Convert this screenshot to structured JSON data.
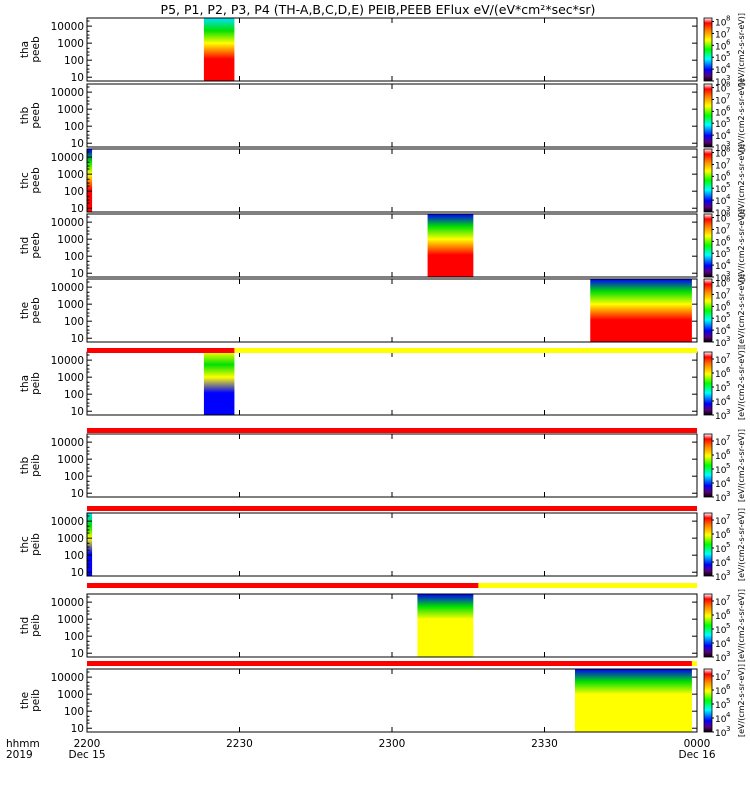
{
  "title": "P5, P1, P2, P3, P4 (TH-A,B,C,D,E) PEIB,PEEB EFlux eV/(eV*cm²*sec*sr)",
  "x_axis": {
    "row1_label": "hhmm",
    "row2_label": "2019",
    "ticks": [
      "2200",
      "2230",
      "2300",
      "2330",
      "0000"
    ],
    "dates": [
      "Dec 15",
      "Dec 16"
    ]
  },
  "colorbar_label": "[eV/(cm2-s-sr-eV)]",
  "colors": {
    "red_bar": "#ff0000",
    "yellow_bar": "#ffff00",
    "frame": "#000000"
  },
  "chart_data": [
    {
      "type": "heatmap",
      "ylabel": [
        "tha",
        "peeb"
      ],
      "yticks": [
        "10000",
        "1000",
        "100",
        "10"
      ],
      "ylog": true,
      "cbar_exponents": [
        "8",
        "7",
        "6",
        "5",
        "4",
        "3"
      ],
      "cbar_range": [
        3,
        8.3
      ],
      "blocks": [
        {
          "t0": "22:23",
          "t1": "22:29",
          "low_e": "red",
          "high_e": "cyan"
        }
      ]
    },
    {
      "type": "heatmap",
      "ylabel": [
        "thb",
        "peeb"
      ],
      "yticks": [
        "10000",
        "1000",
        "100",
        "10"
      ],
      "ylog": true,
      "cbar_exponents": [
        "8",
        "7",
        "6",
        "5",
        "4",
        "3"
      ],
      "cbar_range": [
        3,
        8.3
      ],
      "blocks": []
    },
    {
      "type": "heatmap",
      "ylabel": [
        "thc",
        "peeb"
      ],
      "yticks": [
        "10000",
        "1000",
        "100",
        "10"
      ],
      "ylog": true,
      "cbar_exponents": [
        "8",
        "7",
        "6",
        "5",
        "4",
        "3"
      ],
      "cbar_range": [
        3,
        8.3
      ],
      "blocks": [
        {
          "t0": "22:00",
          "t1": "22:01",
          "low_e": "red",
          "high_e": "blue"
        }
      ]
    },
    {
      "type": "heatmap",
      "ylabel": [
        "thd",
        "peeb"
      ],
      "yticks": [
        "10000",
        "1000",
        "100",
        "10"
      ],
      "ylog": true,
      "cbar_exponents": [
        "8",
        "7",
        "6",
        "5",
        "4",
        "3"
      ],
      "cbar_range": [
        3,
        8.3
      ],
      "blocks": [
        {
          "t0": "23:07",
          "t1": "23:16",
          "low_e": "red",
          "high_e": "blue"
        }
      ]
    },
    {
      "type": "heatmap",
      "ylabel": [
        "the",
        "peeb"
      ],
      "yticks": [
        "10000",
        "1000",
        "100",
        "10"
      ],
      "ylog": true,
      "cbar_exponents": [
        "8",
        "7",
        "6",
        "5",
        "4",
        "3"
      ],
      "cbar_range": [
        3,
        8.3
      ],
      "blocks": [
        {
          "t0": "23:39",
          "t1": "23:59",
          "low_e": "red",
          "high_e": "blue"
        }
      ]
    },
    {
      "type": "heatmap",
      "ylabel": [
        "tha",
        "peib"
      ],
      "yticks": [
        "10000",
        "1000",
        "100",
        "10"
      ],
      "ylog": true,
      "cbar_exponents": [
        "7",
        "6",
        "5",
        "4",
        "3"
      ],
      "cbar_range": [
        3,
        7.5
      ],
      "blocks": [
        {
          "t0": "22:23",
          "t1": "22:29",
          "low_e": "blue",
          "high_e": "yellow"
        }
      ]
    },
    {
      "type": "heatmap",
      "ylabel": [
        "thb",
        "peib"
      ],
      "yticks": [
        "10000",
        "1000",
        "100",
        "10"
      ],
      "ylog": true,
      "cbar_exponents": [
        "7",
        "6",
        "5",
        "4",
        "3"
      ],
      "cbar_range": [
        3,
        7.5
      ],
      "blocks": []
    },
    {
      "type": "heatmap",
      "ylabel": [
        "thc",
        "peib"
      ],
      "yticks": [
        "10000",
        "1000",
        "100",
        "10"
      ],
      "ylog": true,
      "cbar_exponents": [
        "7",
        "6",
        "5",
        "4",
        "3"
      ],
      "cbar_range": [
        3,
        7.5
      ],
      "blocks": [
        {
          "t0": "22:00",
          "t1": "22:01",
          "low_e": "blue",
          "high_e": "cyan"
        }
      ]
    },
    {
      "type": "heatmap",
      "ylabel": [
        "thd",
        "peib"
      ],
      "yticks": [
        "10000",
        "1000",
        "100",
        "10"
      ],
      "ylog": true,
      "cbar_exponents": [
        "7",
        "6",
        "5",
        "4",
        "3"
      ],
      "cbar_range": [
        3,
        7.5
      ],
      "blocks": [
        {
          "t0": "23:05",
          "t1": "23:16",
          "low_e": "yellow",
          "high_e": "blue"
        }
      ]
    },
    {
      "type": "heatmap",
      "ylabel": [
        "the",
        "peib"
      ],
      "yticks": [
        "10000",
        "1000",
        "100",
        "10"
      ],
      "ylog": true,
      "cbar_exponents": [
        "7",
        "6",
        "5",
        "4",
        "3"
      ],
      "cbar_range": [
        3,
        7.5
      ],
      "blocks": [
        {
          "t0": "23:36",
          "t1": "23:59",
          "low_e": "yellow",
          "high_e": "blue"
        }
      ]
    }
  ],
  "mode_bars": [
    {
      "after_panel": 4,
      "segments": [
        {
          "t0": "22:00",
          "t1": "22:29",
          "color": "red"
        },
        {
          "t0": "22:29",
          "t1": "24:00",
          "color": "yellow"
        }
      ]
    },
    {
      "after_panel": 5,
      "segments": [
        {
          "t0": "22:00",
          "t1": "24:00",
          "color": "red"
        }
      ]
    },
    {
      "after_panel": 6,
      "segments": [
        {
          "t0": "22:00",
          "t1": "24:00",
          "color": "red"
        }
      ]
    },
    {
      "after_panel": 7,
      "segments": [
        {
          "t0": "22:00",
          "t1": "23:17",
          "color": "red"
        },
        {
          "t0": "23:17",
          "t1": "24:00",
          "color": "yellow"
        }
      ]
    },
    {
      "after_panel": 8,
      "segments": [
        {
          "t0": "22:00",
          "t1": "23:59",
          "color": "red"
        },
        {
          "t0": "23:59",
          "t1": "24:00",
          "color": "yellow"
        }
      ]
    }
  ]
}
